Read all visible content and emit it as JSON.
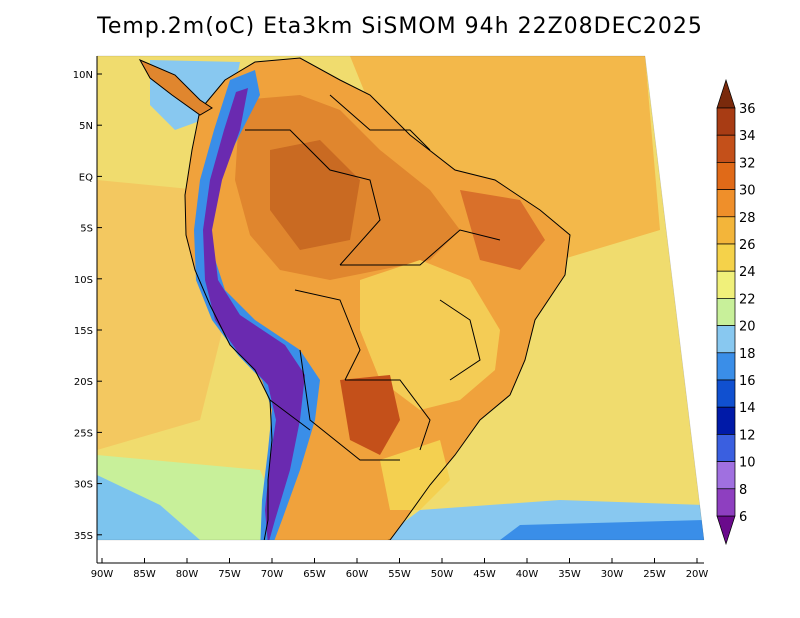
{
  "title": "Temp.2m(oC) Eta3km SiSMOM 94h 22Z08DEC2025",
  "map": {
    "variable": "2 m air temperature",
    "units": "°C",
    "lat_ticks": [
      "10N",
      "5N",
      "EQ",
      "5S",
      "10S",
      "15S",
      "20S",
      "25S",
      "30S",
      "35S"
    ],
    "lon_ticks": [
      "90W",
      "85W",
      "80W",
      "75W",
      "70W",
      "65W",
      "60W",
      "55W",
      "50W",
      "45W",
      "40W",
      "35W",
      "30W",
      "25W",
      "20W"
    ]
  },
  "colorbar": {
    "levels": [
      "6",
      "8",
      "10",
      "12",
      "14",
      "16",
      "18",
      "20",
      "22",
      "24",
      "26",
      "28",
      "30",
      "32",
      "34",
      "36"
    ],
    "colors": [
      "#6a0a8c",
      "#8e3fc0",
      "#a070e0",
      "#3a5fe0",
      "#001aa8",
      "#1050d0",
      "#3a8ee8",
      "#88c8f0",
      "#c8f09a",
      "#f0f07a",
      "#f5d24a",
      "#f3b53a",
      "#ef8f2a",
      "#e06a18",
      "#c4501a",
      "#a83c14",
      "#7a2a0c"
    ]
  },
  "palette": {
    "ocean_north": "#f3c24a",
    "ocean_south": "#f0e27a",
    "ocean_cold": "#7cc4ee",
    "amazon": "#e0862e",
    "andes_cold": "#3a5fe0",
    "andes_peak": "#6a0a8c",
    "border": "#000000"
  }
}
